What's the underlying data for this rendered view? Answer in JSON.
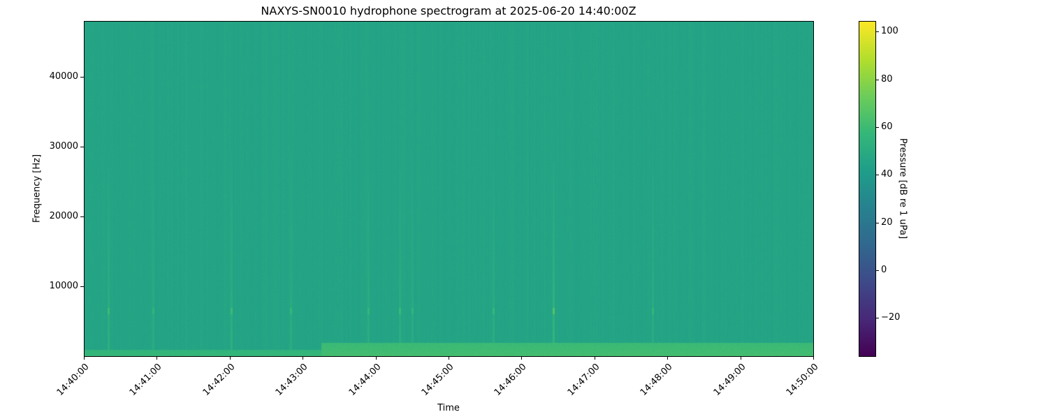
{
  "chart_data": {
    "type": "heatmap",
    "title": "NAXYS-SN0010 hydrophone spectrogram at 2025-06-20 14:40:00Z",
    "xlabel": "Time",
    "ylabel": "Frequency [Hz]",
    "xlim": [
      "14:40:00",
      "14:50:00"
    ],
    "ylim": [
      0,
      48000
    ],
    "x_ticks": [
      "14:40:00",
      "14:41:00",
      "14:42:00",
      "14:43:00",
      "14:44:00",
      "14:45:00",
      "14:46:00",
      "14:47:00",
      "14:48:00",
      "14:49:00",
      "14:50:00"
    ],
    "y_ticks": [
      10000,
      20000,
      30000,
      40000
    ],
    "colormap": "viridis",
    "colorbar": {
      "label": "Pressure [dB re 1 uPa]",
      "range": [
        -36,
        104.5
      ],
      "ticks": [
        -20,
        0,
        20,
        40,
        60,
        80,
        100
      ]
    },
    "background_level_db": 46,
    "low_band": [
      {
        "start": "14:40:00",
        "end": "14:43:15",
        "max_freq_hz": 1000,
        "level_db": 58
      },
      {
        "start": "14:43:15",
        "end": "14:50:00",
        "max_freq_hz": 2000,
        "level_db": 62
      }
    ],
    "transients": [
      {
        "time": "14:40:20",
        "level_db": 58,
        "tone_hz": 6500
      },
      {
        "time": "14:40:57",
        "level_db": 54,
        "tone_hz": 6500
      },
      {
        "time": "14:42:01",
        "level_db": 58,
        "tone_hz": 6500
      },
      {
        "time": "14:42:50",
        "level_db": 55,
        "tone_hz": 6500
      },
      {
        "time": "14:43:54",
        "level_db": 56,
        "tone_hz": 6500
      },
      {
        "time": "14:44:20",
        "level_db": 57,
        "tone_hz": 6500
      },
      {
        "time": "14:44:30",
        "level_db": 54,
        "tone_hz": 6500
      },
      {
        "time": "14:45:37",
        "level_db": 56,
        "tone_hz": 6500
      },
      {
        "time": "14:46:26",
        "level_db": 64,
        "tone_hz": 6500
      },
      {
        "time": "14:47:48",
        "level_db": 55,
        "tone_hz": 6500
      }
    ],
    "grid": false
  }
}
